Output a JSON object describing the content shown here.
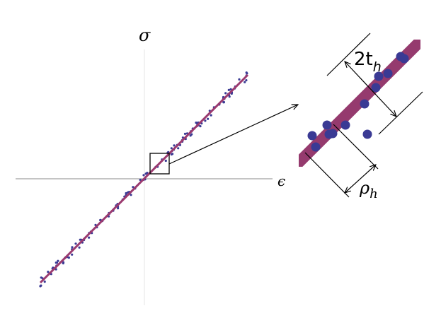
{
  "axes": {
    "y_label": "σ",
    "x_label": "ϵ"
  },
  "inset": {
    "thickness_label": {
      "main": "2t",
      "sub": "h"
    },
    "spacing_label": {
      "main": "ρ",
      "sub": "h"
    }
  }
}
